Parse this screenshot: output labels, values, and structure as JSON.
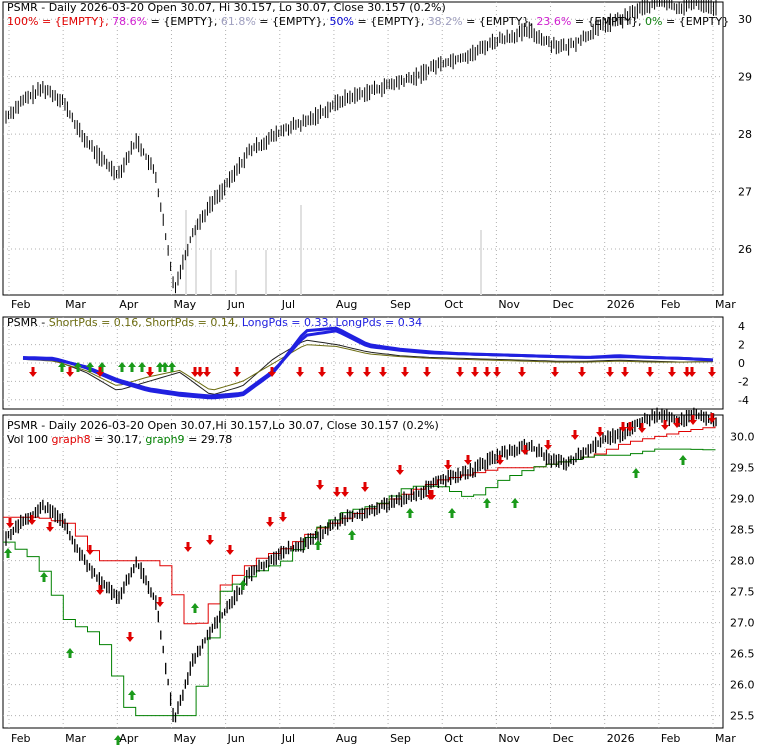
{
  "colors": {
    "up_arrow": "#1a9a1a",
    "down_arrow": "#e00000",
    "short1": "#2020e0",
    "short2": "#6b6b10",
    "long1": "#202020",
    "long2": "#2020e0",
    "stop_red": "#e00000",
    "stop_green": "#008000",
    "fib_100": "#e00000",
    "fib_786": "#d020d0",
    "fib_618": "#a0a0c0",
    "fib_50": "#0000d0",
    "fib_382": "#a0a0c0",
    "fib_236": "#d020d0",
    "fib_0": "#108010"
  },
  "panel1": {
    "title_parts": [
      {
        "text": "PSMR - Daily 2026-03-20 Open 30.07, Hi 30.157, Lo 30.07, Close 30.157 (0.2%)",
        "color": "#000000"
      }
    ],
    "fib_parts": [
      {
        "text": "100% = {EMPTY}, ",
        "color": "#e00000"
      },
      {
        "text": "78.6% ",
        "color": "#d020d0"
      },
      {
        "text": "= {EMPTY}, ",
        "color": "#000000"
      },
      {
        "text": "61.8% ",
        "color": "#a0a0c0"
      },
      {
        "text": "= {EMPTY}, ",
        "color": "#000000"
      },
      {
        "text": "50% ",
        "color": "#0000d0"
      },
      {
        "text": "= {EMPTY}, ",
        "color": "#000000"
      },
      {
        "text": "38.2% ",
        "color": "#a0a0c0"
      },
      {
        "text": "= {EMPTY}, ",
        "color": "#000000"
      },
      {
        "text": "23.6% ",
        "color": "#d020d0"
      },
      {
        "text": "= {EMPTY}, ",
        "color": "#000000"
      },
      {
        "text": "0% ",
        "color": "#108010"
      },
      {
        "text": "= {EMPTY}",
        "color": "#000000"
      }
    ],
    "y_ticks": [
      "30",
      "29",
      "28",
      "27",
      "26"
    ],
    "x_ticks": [
      "Feb",
      "Mar",
      "Apr",
      "May",
      "Jun",
      "Jul",
      "Aug",
      "Sep",
      "Oct",
      "Nov",
      "Dec",
      "2026",
      "Feb",
      "Mar"
    ]
  },
  "panel2": {
    "title_parts": [
      {
        "text": "PSMR - ",
        "color": "#000000"
      },
      {
        "text": "ShortPds = 0.16, ",
        "color": "#6b6b10"
      },
      {
        "text": "ShortPds = 0.14, ",
        "color": "#6b6b10"
      },
      {
        "text": "LongPds = 0.33, ",
        "color": "#2020e0"
      },
      {
        "text": "LongPds = 0.34",
        "color": "#2020e0"
      }
    ],
    "y_ticks": [
      "4",
      "2",
      "0",
      "-2",
      "-4"
    ]
  },
  "panel3": {
    "title_line1": "PSMR - Daily 2026-03-20 Open 30.07,Hi 30.157,Lo 30.07, Close 30.157 (0.2%)",
    "title_parts2": [
      {
        "text": "Vol 100 ",
        "color": "#000000"
      },
      {
        "text": "graph8 ",
        "color": "#e00000"
      },
      {
        "text": "= 30.17, ",
        "color": "#000000"
      },
      {
        "text": "graph9 ",
        "color": "#008000"
      },
      {
        "text": "= 29.78",
        "color": "#000000"
      }
    ],
    "y_ticks": [
      "30.0",
      "29.5",
      "29.0",
      "28.5",
      "28.0",
      "27.5",
      "27.0",
      "26.5",
      "26.0",
      "25.5"
    ],
    "x_ticks": [
      "Feb",
      "Mar",
      "Apr",
      "May",
      "Jun",
      "Jul",
      "Aug",
      "Sep",
      "Oct",
      "Nov",
      "Dec",
      "2026",
      "Feb",
      "Mar"
    ]
  },
  "chart_data": [
    {
      "type": "line",
      "title": "PSMR - Daily 2026-03-20 Open 30.07, Hi 30.157, Lo 30.07, Close 30.157 (0.2%)",
      "x_ticks": [
        "Feb",
        "Mar",
        "Apr",
        "May",
        "Jun",
        "Jul",
        "Aug",
        "Sep",
        "Oct",
        "Nov",
        "Dec",
        "2026",
        "Feb",
        "Mar"
      ],
      "ylim": [
        25.2,
        30.3
      ],
      "series": [
        {
          "values": [
            28.3,
            28.6,
            28.8,
            28.6,
            28.0,
            27.6,
            27.3,
            27.9,
            27.3,
            25.3,
            26.3,
            26.8,
            27.2,
            27.7,
            27.9,
            28.1,
            28.2,
            28.4,
            28.6,
            28.7,
            28.8,
            28.9,
            29.0,
            29.2,
            29.3,
            29.4,
            29.6,
            29.7,
            29.8,
            29.6,
            29.5,
            29.7,
            29.9,
            30.0,
            30.2,
            30.3,
            30.2,
            30.3,
            30.2
          ]
        }
      ]
    },
    {
      "type": "line",
      "title": "PSMR - ShortPds = 0.16, ShortPds = 0.14, LongPds = 0.33, LongPds = 0.34",
      "ylim": [
        -5,
        5
      ],
      "series": [
        {
          "name": "ShortPds",
          "values": [
            0.5,
            0.3,
            -1.0,
            -3.0,
            -2.0,
            -1.0,
            -3.5,
            -2.5,
            0.5,
            2.5,
            2.0,
            1.2,
            0.8,
            0.6,
            0.5,
            0.4,
            0.3,
            0.2,
            0.2,
            0.3,
            0.2,
            0.1,
            0.16
          ]
        },
        {
          "name": "ShortPds",
          "values": [
            0.4,
            0.2,
            -0.8,
            -2.5,
            -1.5,
            -0.8,
            -3.0,
            -2.0,
            0.0,
            2.0,
            1.8,
            1.0,
            0.7,
            0.5,
            0.4,
            0.3,
            0.2,
            0.1,
            0.1,
            0.2,
            0.1,
            0.1,
            0.14
          ]
        },
        {
          "name": "LongPds",
          "values": [
            0.6,
            0.5,
            -0.5,
            -2.0,
            -3.0,
            -3.5,
            -3.8,
            -3.5,
            -1.0,
            3.5,
            3.8,
            2.0,
            1.5,
            1.2,
            1.0,
            0.9,
            0.8,
            0.7,
            0.6,
            0.8,
            0.6,
            0.5,
            0.33
          ]
        },
        {
          "name": "LongPds",
          "values": [
            0.5,
            0.4,
            -0.4,
            -1.8,
            -2.8,
            -3.3,
            -3.6,
            -3.3,
            -0.8,
            3.0,
            3.5,
            1.8,
            1.4,
            1.1,
            1.0,
            0.9,
            0.8,
            0.7,
            0.6,
            0.7,
            0.6,
            0.5,
            0.34
          ]
        }
      ]
    },
    {
      "type": "line",
      "title": "PSMR - Daily 2026-03-20 Open 30.07,Hi 30.157,Lo 30.07, Close 30.157 (0.2%)",
      "ylim": [
        25.3,
        30.35
      ],
      "series": [
        {
          "name": "graph8",
          "values": [
            28.7,
            28.7,
            28.6,
            28.0,
            28.0,
            28.0,
            26.8,
            27.6,
            28.0,
            28.2,
            28.5,
            28.7,
            28.9,
            29.1,
            29.3,
            29.4,
            29.5,
            29.5,
            29.6,
            29.7,
            29.9,
            30.0,
            30.1,
            30.17
          ]
        },
        {
          "name": "graph9",
          "values": [
            28.3,
            28.0,
            27.0,
            26.8,
            25.5,
            25.5,
            25.5,
            27.5,
            27.8,
            28.0,
            28.5,
            28.8,
            28.9,
            29.2,
            29.2,
            29.0,
            29.3,
            29.5,
            29.6,
            29.7,
            29.7,
            29.8,
            29.8,
            29.78
          ]
        }
      ]
    }
  ]
}
